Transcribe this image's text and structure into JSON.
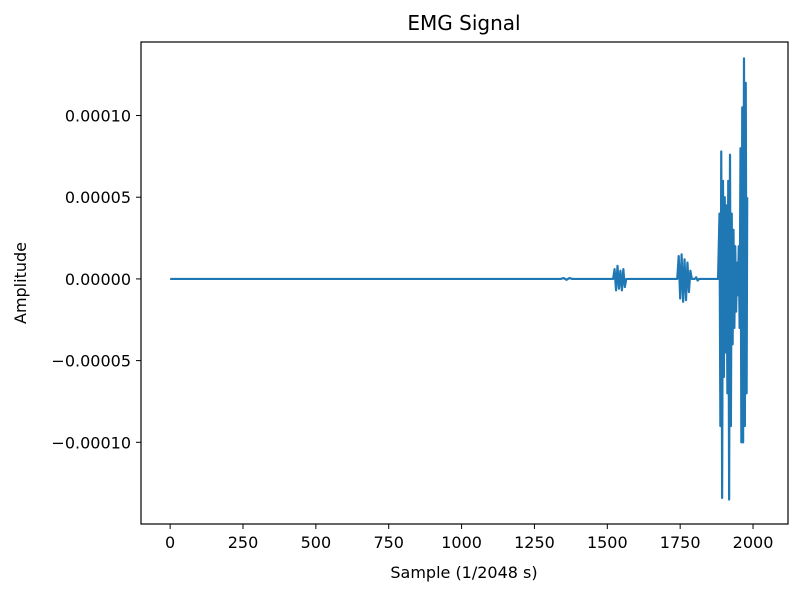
{
  "chart_data": {
    "type": "line",
    "title": "EMG Signal",
    "xlabel": "Sample (1/2048 s)",
    "ylabel": "Amplitude",
    "xlim": [
      -100,
      2120
    ],
    "ylim": [
      -0.00015,
      0.000145
    ],
    "x_ticks": [
      0,
      250,
      500,
      750,
      1000,
      1250,
      1500,
      1750,
      2000
    ],
    "x_tick_labels": [
      "0",
      "250",
      "500",
      "750",
      "1000",
      "1250",
      "1500",
      "1750",
      "2000"
    ],
    "y_ticks": [
      -0.0001,
      -5e-05,
      0,
      5e-05,
      0.0001
    ],
    "y_tick_labels": [
      "−0.00010",
      "−0.00005",
      "0.00000",
      "0.00005",
      "0.00010"
    ],
    "grid": false,
    "series": [
      {
        "color": "#1f77b4",
        "points": [
          [
            0,
            0
          ],
          [
            1340,
            0
          ],
          [
            1350,
            5e-07
          ],
          [
            1360,
            -5e-07
          ],
          [
            1370,
            5e-07
          ],
          [
            1380,
            0
          ],
          [
            1520,
            0
          ],
          [
            1525,
            6e-06
          ],
          [
            1530,
            -7e-06
          ],
          [
            1535,
            8e-06
          ],
          [
            1540,
            -6e-06
          ],
          [
            1545,
            5e-06
          ],
          [
            1550,
            -7e-06
          ],
          [
            1555,
            6e-06
          ],
          [
            1560,
            -5e-06
          ],
          [
            1565,
            0
          ],
          [
            1740,
            0
          ],
          [
            1745,
            1.4e-05
          ],
          [
            1750,
            -1.2e-05
          ],
          [
            1755,
            1.5e-05
          ],
          [
            1760,
            -1.4e-05
          ],
          [
            1765,
            1.2e-05
          ],
          [
            1770,
            -1.3e-05
          ],
          [
            1775,
            1e-05
          ],
          [
            1780,
            -8e-06
          ],
          [
            1785,
            5e-06
          ],
          [
            1790,
            0
          ],
          [
            1800,
            0
          ],
          [
            1805,
            1e-06
          ],
          [
            1810,
            -1e-06
          ],
          [
            1815,
            0
          ],
          [
            1880,
            0
          ],
          [
            1885,
            4e-05
          ],
          [
            1888,
            -9e-05
          ],
          [
            1891,
            7.8e-05
          ],
          [
            1894,
            -0.000134
          ],
          [
            1897,
            6e-05
          ],
          [
            1900,
            -6e-05
          ],
          [
            1903,
            5e-05
          ],
          [
            1906,
            -4.5e-05
          ],
          [
            1909,
            4.5e-05
          ],
          [
            1912,
            -7e-05
          ],
          [
            1915,
            6e-05
          ],
          [
            1918,
            -0.000135
          ],
          [
            1921,
            7.6e-05
          ],
          [
            1924,
            -9e-05
          ],
          [
            1927,
            4e-05
          ],
          [
            1930,
            -4e-05
          ],
          [
            1933,
            3e-05
          ],
          [
            1936,
            -3e-05
          ],
          [
            1939,
            2e-05
          ],
          [
            1942,
            -2e-05
          ],
          [
            1945,
            1e-05
          ],
          [
            1948,
            -1e-05
          ],
          [
            1951,
            2e-05
          ],
          [
            1954,
            -3e-05
          ],
          [
            1957,
            8e-05
          ],
          [
            1960,
            -0.0001
          ],
          [
            1963,
            0.000105
          ],
          [
            1966,
            -0.0001
          ],
          [
            1969,
            0.000135
          ],
          [
            1972,
            -9e-05
          ],
          [
            1975,
            0.00012
          ],
          [
            1978,
            -7e-05
          ],
          [
            1980,
            5e-05
          ]
        ]
      }
    ]
  }
}
